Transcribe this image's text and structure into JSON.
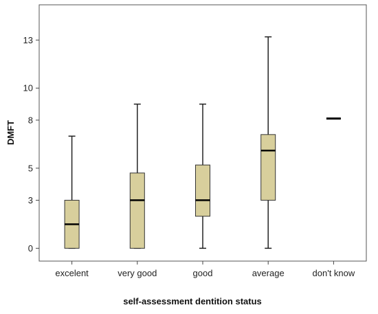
{
  "chart_data": {
    "type": "boxplot",
    "xlabel": "self-assessment dentition status",
    "ylabel": "DMFT",
    "y_ticks": [
      0,
      3,
      5,
      8,
      10,
      13
    ],
    "ylim": [
      -0.8,
      15.2
    ],
    "grid": false,
    "legend": "none",
    "box_color": "#d8cf9c",
    "categories": [
      "excelent",
      "very good",
      "good",
      "average",
      "don't know"
    ],
    "boxes": [
      {
        "category": "excelent",
        "min": 0,
        "q1": 0,
        "median": 1.5,
        "q3": 3.0,
        "max": 7.0
      },
      {
        "category": "very good",
        "min": 0,
        "q1": 0,
        "median": 3.0,
        "q3": 4.7,
        "max": 9.0
      },
      {
        "category": "good",
        "min": 0,
        "q1": 2.0,
        "median": 3.0,
        "q3": 5.2,
        "max": 9.0
      },
      {
        "category": "average",
        "min": 0,
        "q1": 3.0,
        "median": 6.1,
        "q3": 7.1,
        "max": 13.2
      },
      {
        "category": "don't know",
        "min": 8.1,
        "q1": 8.1,
        "median": 8.1,
        "q3": 8.1,
        "max": 8.1
      }
    ]
  }
}
